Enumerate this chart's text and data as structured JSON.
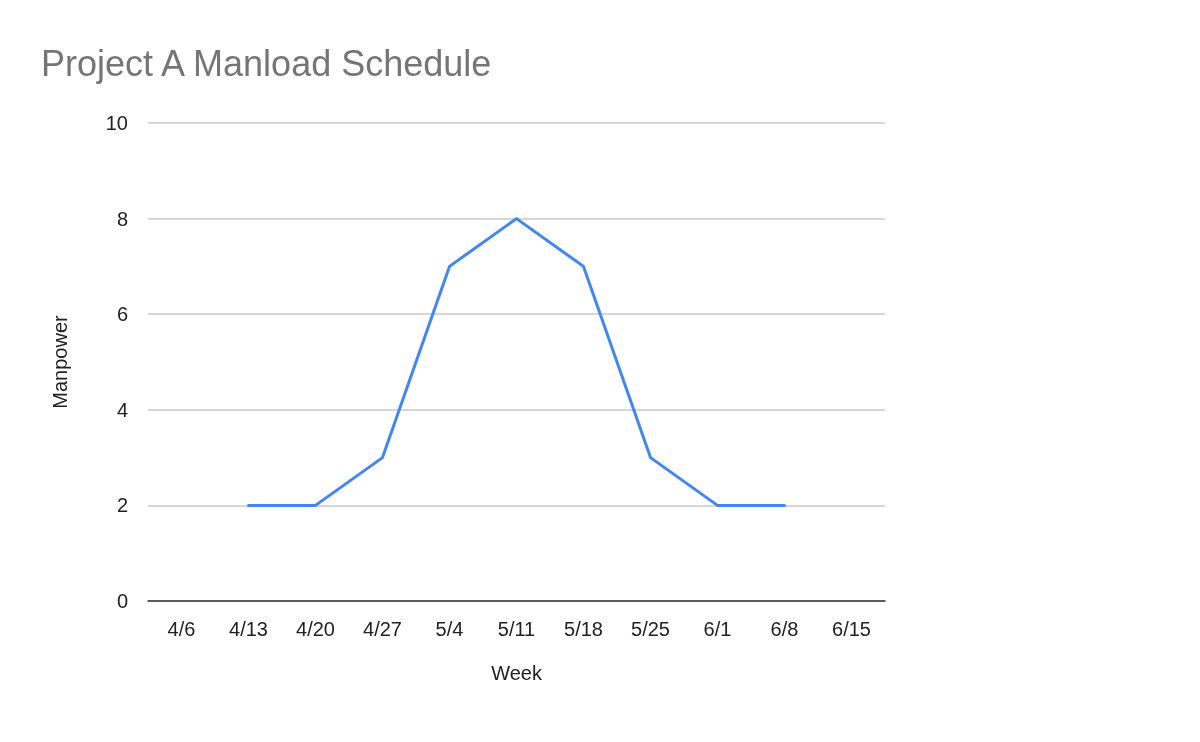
{
  "chart_data": {
    "type": "line",
    "title": "Project A Manload Schedule",
    "xlabel": "Week",
    "ylabel": "Manpower",
    "categories": [
      "4/6",
      "4/13",
      "4/20",
      "4/27",
      "5/4",
      "5/11",
      "5/18",
      "5/25",
      "6/1",
      "6/8",
      "6/15"
    ],
    "series": [
      {
        "color": "#4285f4",
        "values": [
          null,
          2,
          2,
          3,
          7,
          8,
          7,
          3,
          2,
          2,
          null
        ]
      }
    ],
    "ylim": [
      0,
      10
    ],
    "yticks": [
      0,
      2,
      4,
      6,
      8,
      10
    ],
    "grid": "y",
    "marker": "none",
    "line_style": "solid"
  }
}
